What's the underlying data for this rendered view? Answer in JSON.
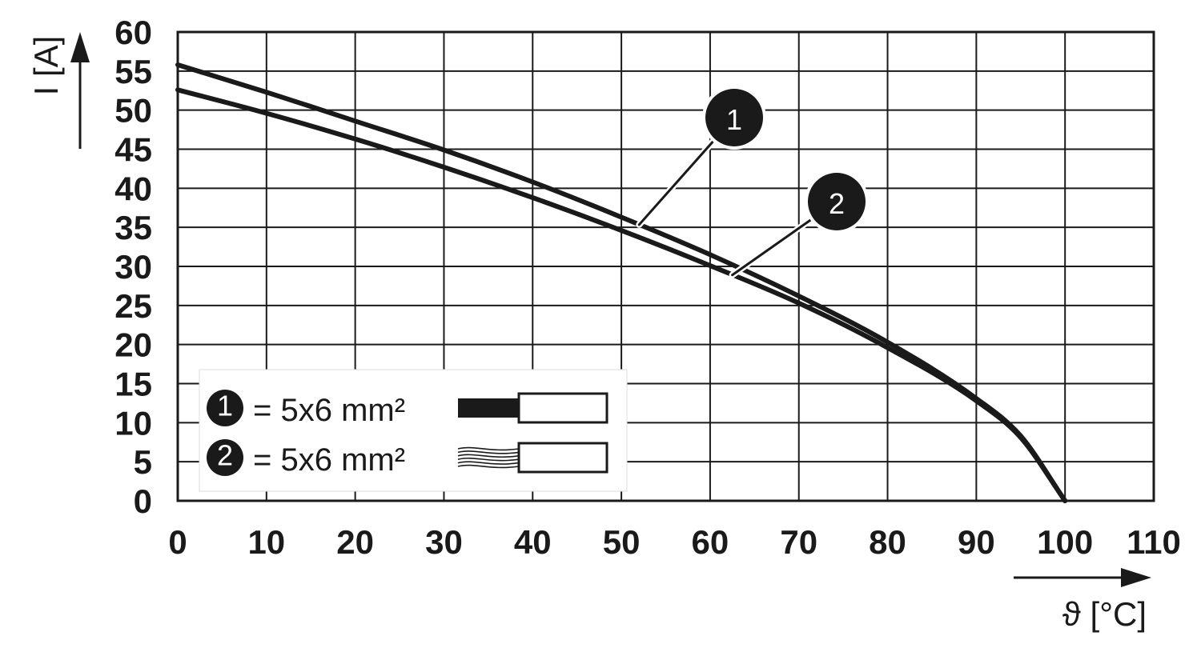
{
  "chart_data": {
    "type": "line",
    "xlabel": "ϑ [°C]",
    "ylabel": "I [A]",
    "xlim": [
      0,
      110
    ],
    "ylim": [
      0,
      60
    ],
    "x_ticks": [
      0,
      10,
      20,
      30,
      40,
      50,
      60,
      70,
      80,
      90,
      100,
      110
    ],
    "y_ticks": [
      0,
      5,
      10,
      15,
      20,
      25,
      30,
      35,
      40,
      45,
      50,
      55,
      60
    ],
    "grid": true,
    "series": [
      {
        "name": "1",
        "x": [
          0,
          10,
          20,
          30,
          40,
          50,
          60,
          70,
          80,
          90,
          95,
          100
        ],
        "y": [
          55.8,
          52.3,
          48.6,
          44.9,
          40.8,
          36.3,
          31.5,
          26.2,
          20.3,
          13.1,
          8.3,
          0
        ]
      },
      {
        "name": "2",
        "x": [
          0,
          10,
          20,
          30,
          40,
          50,
          60,
          70,
          80,
          90,
          95,
          100
        ],
        "y": [
          52.6,
          49.6,
          46.3,
          42.7,
          38.8,
          34.6,
          30.1,
          25.3,
          19.6,
          12.8,
          8.1,
          0
        ]
      }
    ],
    "legend": {
      "placement": "bottom-left",
      "entries": [
        {
          "badge": "1",
          "text": "= 5x6 mm²",
          "conductor": "solid"
        },
        {
          "badge": "2",
          "text": "= 5x6 mm²",
          "conductor": "stranded"
        }
      ]
    },
    "callouts": [
      "1",
      "2"
    ],
    "colors": {
      "line": "#1a1a1a",
      "grid": "#1a1a1a",
      "badge_fill": "#1a1a1a",
      "background": "#ffffff"
    }
  }
}
